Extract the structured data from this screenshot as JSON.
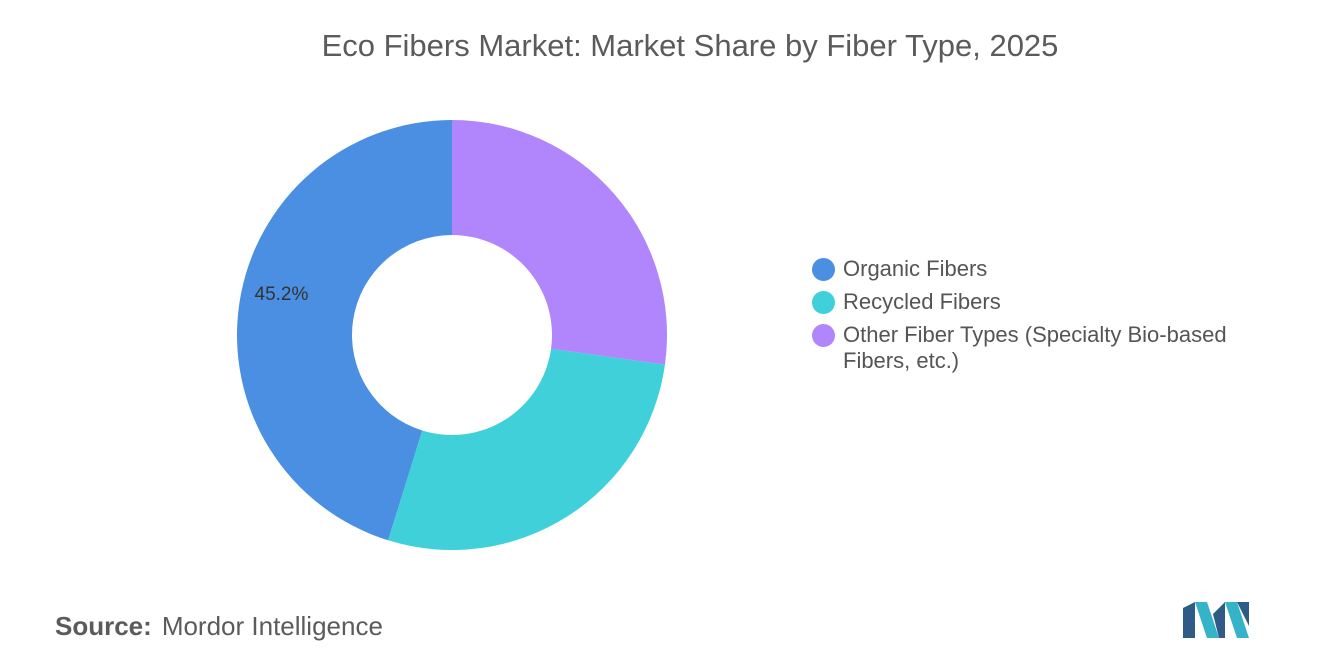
{
  "chart_data": {
    "type": "pie",
    "variant": "donut",
    "title": "Eco Fibers Market: Market Share by Fiber Type, 2025",
    "slices": [
      {
        "name": "Organic Fibers",
        "value": 45.2,
        "label": "45.2%",
        "color": "#4a8fe2"
      },
      {
        "name": "Recycled Fibers",
        "value": 27.6,
        "label": "",
        "color": "#3fd0da"
      },
      {
        "name": "Other Fiber Types (Specialty Bio-based Fibers, etc.)",
        "value": 27.2,
        "label": "",
        "color": "#b185fb"
      }
    ],
    "legend_position": "right"
  },
  "source": {
    "prefix": "Source:",
    "text": "Mordor Intelligence"
  },
  "logo": {
    "icon": "mordor-intelligence-logo",
    "colors": [
      "#2f5b87",
      "#34b3c9"
    ]
  }
}
